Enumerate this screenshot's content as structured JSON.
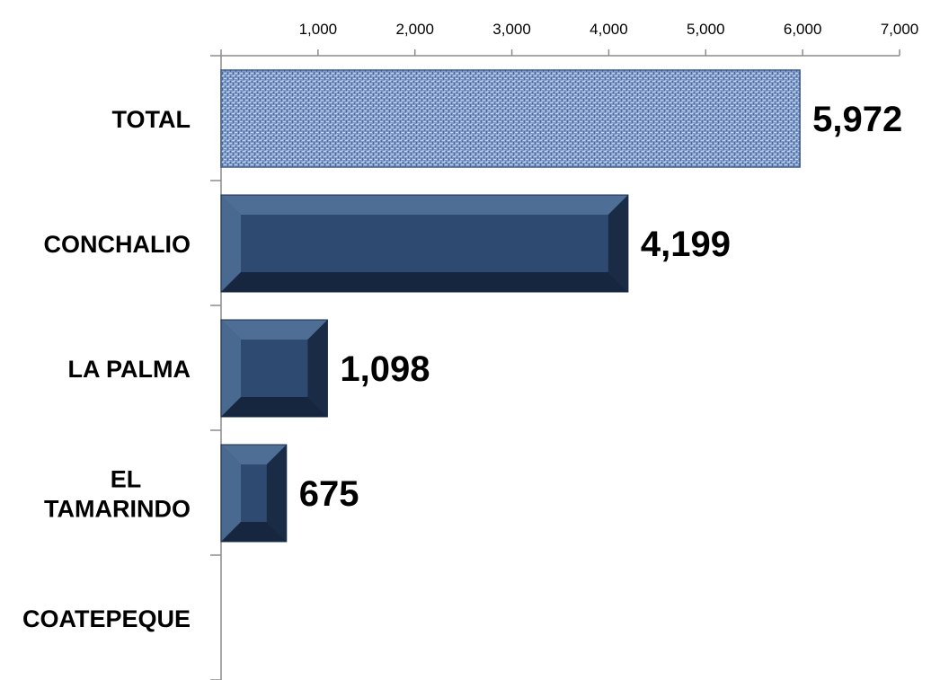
{
  "chart_data": {
    "type": "bar",
    "orientation": "horizontal",
    "categories": [
      "TOTAL",
      "CONCHALIO",
      "LA PALMA",
      "EL TAMARINDO",
      "COATEPEQUE"
    ],
    "category_lines": [
      [
        "TOTAL"
      ],
      [
        "CONCHALIO"
      ],
      [
        "LA PALMA"
      ],
      [
        "EL",
        "TAMARINDO"
      ],
      [
        "COATEPEQUE"
      ]
    ],
    "values": [
      5972,
      4199,
      1098,
      675,
      0
    ],
    "data_labels": [
      "5,972",
      "4,199",
      "1,098",
      "675",
      ""
    ],
    "xlim": [
      0,
      7000
    ],
    "x_ticks": [
      1000,
      2000,
      3000,
      4000,
      5000,
      6000,
      7000
    ],
    "x_tick_labels": [
      "1,000",
      "2,000",
      "3,000",
      "4,000",
      "5,000",
      "6,000",
      "7,000"
    ],
    "x_axis_position": "top",
    "grid": false,
    "legend": "none",
    "colors": {
      "bar": "#2e4a70",
      "bar_light": "#4f6e96",
      "bar_dark": "#16263e",
      "total_bar": "#6f8fc4"
    }
  }
}
